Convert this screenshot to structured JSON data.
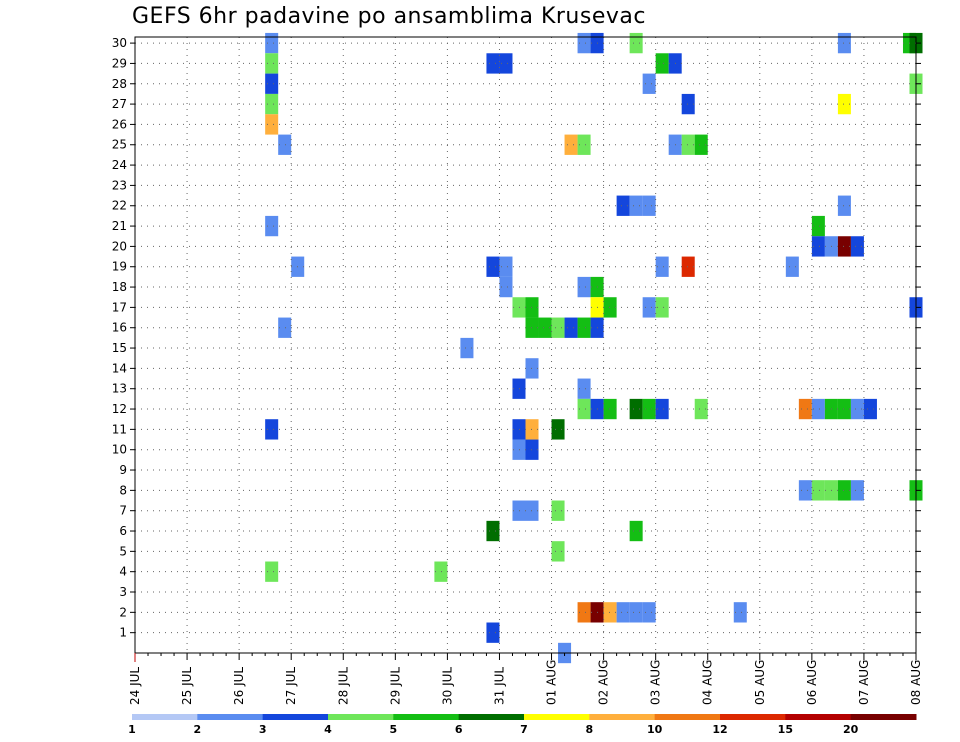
{
  "chart_data": {
    "type": "heatmap",
    "title": "GEFS 6hr padavine po ansamblima Krusevac",
    "x_tick_labels": [
      "24 JUL",
      "25 JUL",
      "26 JUL",
      "27 JUL",
      "28 JUL",
      "29 JUL",
      "30 JUL",
      "31 JUL",
      "01 AUG",
      "02 AUG",
      "03 AUG",
      "04 AUG",
      "05 AUG",
      "06 AUG",
      "07 AUG",
      "08 AUG"
    ],
    "y_tick_labels": [
      "1",
      "2",
      "3",
      "4",
      "5",
      "6",
      "7",
      "8",
      "9",
      "10",
      "11",
      "12",
      "13",
      "14",
      "15",
      "16",
      "17",
      "18",
      "19",
      "20",
      "21",
      "22",
      "23",
      "24",
      "25",
      "26",
      "27",
      "28",
      "29",
      "30"
    ],
    "x_axis": {
      "unit": "6-hour steps from 24 JUL 00Z",
      "steps_per_day": 4,
      "range": [
        0,
        60
      ]
    },
    "y_axis": {
      "unit": "ensemble member",
      "range": [
        0,
        30
      ]
    },
    "grid": true,
    "colorbar": {
      "levels": [
        1,
        2,
        3,
        4,
        5,
        6,
        7,
        8,
        10,
        12,
        15,
        20
      ],
      "level_labels": [
        "1",
        "2",
        "3",
        "4",
        "5",
        "6",
        "7",
        "8",
        "10",
        "12",
        "15",
        "20"
      ],
      "colors": [
        "#b4c8f5",
        "#5a8cf0",
        "#1446dc",
        "#6ee65a",
        "#14be14",
        "#006e00",
        "#ffff00",
        "#ffaf3c",
        "#f07814",
        "#dc2800",
        "#b40000",
        "#780000"
      ]
    },
    "cells": [
      [
        10.5,
        30,
        1
      ],
      [
        34.5,
        30,
        1
      ],
      [
        35.5,
        30,
        2
      ],
      [
        38.5,
        30,
        3
      ],
      [
        54.5,
        30,
        1
      ],
      [
        59.5,
        30,
        4
      ],
      [
        60,
        30,
        5
      ],
      [
        10.5,
        29,
        3
      ],
      [
        27.5,
        29,
        2
      ],
      [
        28.5,
        29,
        2
      ],
      [
        40.5,
        29,
        4
      ],
      [
        41.5,
        29,
        2
      ],
      [
        10.5,
        28,
        2
      ],
      [
        39.5,
        28,
        1
      ],
      [
        60,
        28,
        3
      ],
      [
        10.5,
        27,
        3
      ],
      [
        42.5,
        27,
        2
      ],
      [
        54.5,
        27,
        6
      ],
      [
        10.5,
        26,
        7
      ],
      [
        11.5,
        25,
        1
      ],
      [
        33.5,
        25,
        7
      ],
      [
        34.5,
        25,
        3
      ],
      [
        41.5,
        25,
        1
      ],
      [
        42.5,
        25,
        3
      ],
      [
        43.5,
        25,
        4
      ],
      [
        37.5,
        22,
        2
      ],
      [
        38.5,
        22,
        1
      ],
      [
        39.5,
        22,
        1
      ],
      [
        54.5,
        22,
        1
      ],
      [
        10.5,
        21,
        1
      ],
      [
        52.5,
        21,
        4
      ],
      [
        52.5,
        20,
        2
      ],
      [
        53.5,
        20,
        1
      ],
      [
        54.5,
        20,
        11
      ],
      [
        55.5,
        20,
        2
      ],
      [
        12.5,
        19,
        1
      ],
      [
        27.5,
        19,
        2
      ],
      [
        28.5,
        19,
        1
      ],
      [
        40.5,
        19,
        1
      ],
      [
        42.5,
        19,
        9
      ],
      [
        50.5,
        19,
        1
      ],
      [
        28.5,
        18,
        1
      ],
      [
        34.5,
        18,
        1
      ],
      [
        35.5,
        18,
        4
      ],
      [
        29.5,
        17,
        3
      ],
      [
        30.5,
        17,
        4
      ],
      [
        35.5,
        17,
        6
      ],
      [
        36.5,
        17,
        4
      ],
      [
        39.5,
        17,
        1
      ],
      [
        40.5,
        17,
        3
      ],
      [
        60,
        17,
        2
      ],
      [
        30.5,
        16,
        4
      ],
      [
        31.5,
        16,
        4
      ],
      [
        32.5,
        16,
        3
      ],
      [
        33.5,
        16,
        2
      ],
      [
        34.5,
        16,
        4
      ],
      [
        35.5,
        16,
        2
      ],
      [
        11.5,
        16,
        1
      ],
      [
        25.5,
        15,
        1
      ],
      [
        30.5,
        14,
        1
      ],
      [
        29.5,
        13,
        2
      ],
      [
        34.5,
        13,
        1
      ],
      [
        34.5,
        12,
        3
      ],
      [
        35.5,
        12,
        2
      ],
      [
        36.5,
        12,
        4
      ],
      [
        38.5,
        12,
        5
      ],
      [
        39.5,
        12,
        4
      ],
      [
        40.5,
        12,
        2
      ],
      [
        43.5,
        12,
        3
      ],
      [
        51.5,
        12,
        8
      ],
      [
        52.5,
        12,
        1
      ],
      [
        53.5,
        12,
        4
      ],
      [
        54.5,
        12,
        4
      ],
      [
        55.5,
        12,
        1
      ],
      [
        56.5,
        12,
        2
      ],
      [
        10.5,
        11,
        2
      ],
      [
        29.5,
        11,
        2
      ],
      [
        30.5,
        11,
        7
      ],
      [
        32.5,
        11,
        5
      ],
      [
        29.5,
        10,
        1
      ],
      [
        30.5,
        10,
        2
      ],
      [
        51.5,
        8,
        1
      ],
      [
        52.5,
        8,
        3
      ],
      [
        53.5,
        8,
        3
      ],
      [
        54.5,
        8,
        4
      ],
      [
        55.5,
        8,
        1
      ],
      [
        60,
        8,
        4
      ],
      [
        29.5,
        7,
        1
      ],
      [
        30.5,
        7,
        1
      ],
      [
        32.5,
        7,
        3
      ],
      [
        27.5,
        6,
        5
      ],
      [
        38.5,
        6,
        4
      ],
      [
        32.5,
        5,
        3
      ],
      [
        10.5,
        4,
        3
      ],
      [
        23.5,
        4,
        3
      ],
      [
        34.5,
        2,
        8
      ],
      [
        35.5,
        2,
        11
      ],
      [
        36.5,
        2,
        7
      ],
      [
        37.5,
        2,
        1
      ],
      [
        38.5,
        2,
        1
      ],
      [
        39.5,
        2,
        1
      ],
      [
        46.5,
        2,
        1
      ],
      [
        27.5,
        1,
        2
      ],
      [
        33,
        0,
        1
      ]
    ]
  }
}
